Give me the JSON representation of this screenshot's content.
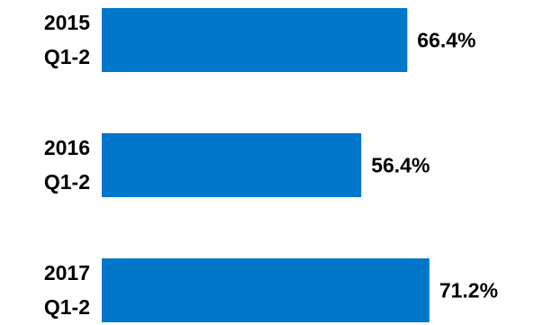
{
  "chart_data": {
    "type": "bar",
    "orientation": "horizontal",
    "categories": [
      [
        "2015",
        "Q1-2"
      ],
      [
        "2016",
        "Q1-2"
      ],
      [
        "2017",
        "Q1-2"
      ]
    ],
    "values": [
      66.4,
      56.4,
      71.2
    ],
    "value_labels": [
      "66.4%",
      "56.4%",
      "71.2%"
    ],
    "unit": "%",
    "bar_color": "#0077c8",
    "xlim": [
      0,
      100
    ],
    "grid": false,
    "legend": "none",
    "title": "",
    "xlabel": "",
    "ylabel": ""
  }
}
